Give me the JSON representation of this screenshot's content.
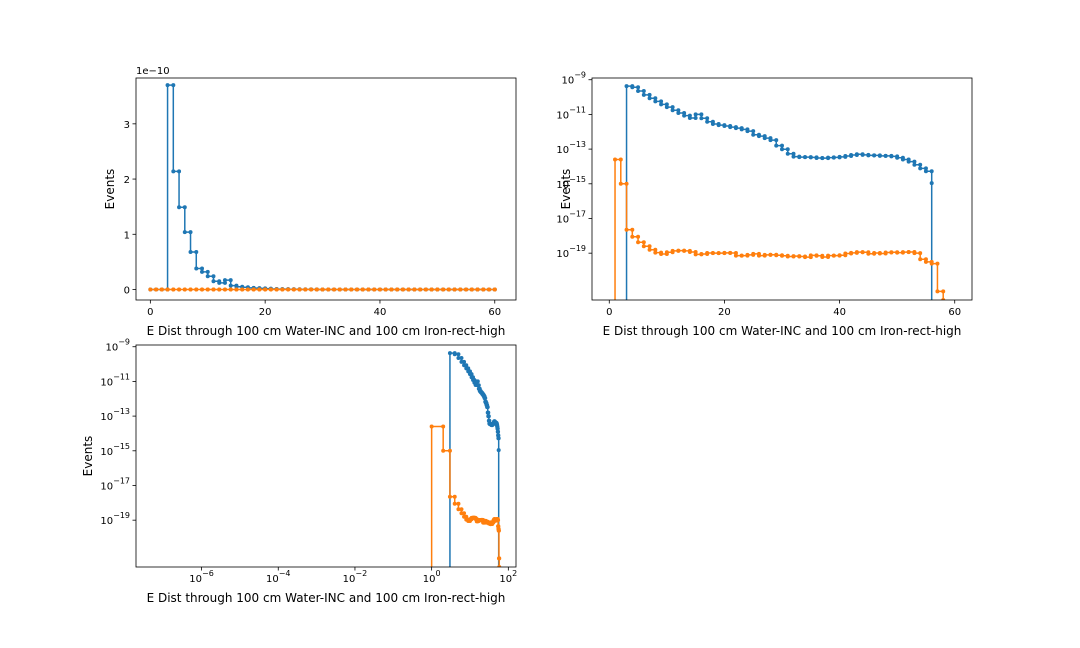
{
  "colors": {
    "series1": "#1f77b4",
    "series2": "#ff7f0e"
  },
  "chart_data": [
    {
      "type": "line",
      "step": true,
      "xlabel": "E Dist through 100 cm Water-INC and 100 cm Iron-rect-high",
      "ylabel": "Events",
      "offset_label": "1e−10",
      "xscale": "linear",
      "yscale": "linear",
      "xlim": [
        -2.5,
        63.7
      ],
      "ylim": [
        -0.19,
        3.83
      ],
      "xticks": [
        0,
        20,
        40,
        60
      ],
      "xtick_labels": [
        "0",
        "20",
        "40",
        "60"
      ],
      "yticks": [
        0,
        1,
        2,
        3
      ],
      "ytick_labels": [
        "0",
        "1",
        "2",
        "3"
      ],
      "series": [
        {
          "x": [
            0,
            1,
            2,
            3,
            4,
            5,
            6,
            7,
            8,
            9,
            10,
            11,
            12,
            13,
            14,
            15,
            16,
            17,
            18,
            19,
            20,
            21,
            22,
            23,
            24,
            25,
            26,
            27,
            28,
            29,
            30,
            31,
            32,
            33,
            34,
            35,
            36,
            37,
            38,
            39,
            40,
            41,
            42,
            43,
            44,
            45,
            46,
            47,
            48,
            49,
            50,
            51,
            52,
            53,
            54,
            55,
            56,
            57,
            58,
            59,
            60
          ],
          "y": [
            0,
            0,
            0,
            3.7,
            2.14,
            1.49,
            1.04,
            0.68,
            0.38,
            0.32,
            0.24,
            0.15,
            0.12,
            0.17,
            0.07,
            0.05,
            0.04,
            0.03,
            0.025,
            0.02,
            0.015,
            0.01,
            0.008,
            0.006,
            0.005,
            0.004,
            0.003,
            0.002,
            0.002,
            0.001,
            0.001,
            0.001,
            0.001,
            0.001,
            0.001,
            0.001,
            0.001,
            0.001,
            0.001,
            0.001,
            0.001,
            0.001,
            0.001,
            0.001,
            0.001,
            0.001,
            0.001,
            0.001,
            0.001,
            0.001,
            0.001,
            0.001,
            0.001,
            0.001,
            0.001,
            0.001,
            0,
            0,
            0,
            0,
            0
          ]
        },
        {
          "x": [
            0,
            1,
            2,
            3,
            4,
            5,
            6,
            7,
            8,
            9,
            10,
            11,
            12,
            13,
            14,
            15,
            16,
            17,
            18,
            19,
            20,
            21,
            22,
            23,
            24,
            25,
            26,
            27,
            28,
            29,
            30,
            31,
            32,
            33,
            34,
            35,
            36,
            37,
            38,
            39,
            40,
            41,
            42,
            43,
            44,
            45,
            46,
            47,
            48,
            49,
            50,
            51,
            52,
            53,
            54,
            55,
            56,
            57,
            58,
            59,
            60
          ],
          "y": [
            0,
            0,
            0,
            0,
            0,
            0,
            0,
            0,
            0,
            0,
            0,
            0,
            0,
            0,
            0,
            0,
            0,
            0,
            0,
            0,
            0,
            0,
            0,
            0,
            0,
            0,
            0,
            0,
            0,
            0,
            0,
            0,
            0,
            0,
            0,
            0,
            0,
            0,
            0,
            0,
            0,
            0,
            0,
            0,
            0,
            0,
            0,
            0,
            0,
            0,
            0,
            0,
            0,
            0,
            0,
            0,
            0,
            0,
            0,
            0,
            0
          ]
        }
      ]
    },
    {
      "type": "line",
      "step": true,
      "xlabel": "E Dist through 100 cm Water-INC and 100 cm Iron-rect-high",
      "ylabel": "Events",
      "xscale": "linear",
      "yscale": "log",
      "xlim": [
        -3.0,
        63.0
      ],
      "ylim": [
        -21.7,
        -8.9
      ],
      "xticks": [
        0,
        20,
        40,
        60
      ],
      "xtick_labels": [
        "0",
        "20",
        "40",
        "60"
      ],
      "yticks": [
        -9,
        -11,
        -13,
        -15,
        -17,
        -19
      ],
      "ytick_labels": [
        "10^-9",
        "10^-11",
        "10^-13",
        "10^-15",
        "10^-17",
        "10^-19"
      ],
      "series": [
        {
          "bottom": -21.7,
          "x": [
            3,
            4,
            5,
            6,
            7,
            8,
            9,
            10,
            11,
            12,
            13,
            14,
            15,
            16,
            17,
            18,
            19,
            20,
            21,
            22,
            23,
            24,
            25,
            26,
            27,
            28,
            29,
            30,
            31,
            32,
            33,
            34,
            35,
            36,
            37,
            38,
            39,
            40,
            41,
            42,
            43,
            44,
            45,
            46,
            47,
            48,
            49,
            50,
            51,
            52,
            53,
            54,
            55,
            56
          ],
          "y": [
            -9.37,
            -9.43,
            -9.65,
            -9.87,
            -10.07,
            -10.25,
            -10.42,
            -10.58,
            -10.76,
            -10.92,
            -11.07,
            -11.21,
            -11.0,
            -11.22,
            -11.42,
            -11.55,
            -11.62,
            -11.67,
            -11.73,
            -11.79,
            -11.86,
            -11.96,
            -12.17,
            -12.25,
            -12.37,
            -12.48,
            -12.8,
            -13.01,
            -13.27,
            -13.43,
            -13.46,
            -13.46,
            -13.48,
            -13.51,
            -13.52,
            -13.49,
            -13.48,
            -13.45,
            -13.4,
            -13.34,
            -13.3,
            -13.33,
            -13.36,
            -13.36,
            -13.39,
            -13.39,
            -13.42,
            -13.5,
            -13.6,
            -13.72,
            -13.9,
            -14.11,
            -14.28,
            -14.96
          ]
        },
        {
          "bottom": -21.7,
          "x": [
            1,
            2,
            3,
            4,
            5,
            6,
            7,
            8,
            9,
            10,
            11,
            12,
            13,
            14,
            15,
            16,
            17,
            18,
            19,
            20,
            21,
            22,
            23,
            24,
            25,
            26,
            27,
            28,
            29,
            30,
            31,
            32,
            33,
            34,
            35,
            36,
            37,
            38,
            39,
            40,
            41,
            42,
            43,
            44,
            45,
            46,
            47,
            48,
            49,
            50,
            51,
            52,
            53,
            54,
            55,
            56,
            57,
            58
          ],
          "y": [
            -13.6,
            -15.0,
            -17.65,
            -18.05,
            -18.37,
            -18.6,
            -18.8,
            -18.97,
            -19.05,
            -18.95,
            -18.87,
            -18.85,
            -18.87,
            -18.93,
            -19.07,
            -19.05,
            -18.99,
            -19.0,
            -19.0,
            -18.98,
            -18.99,
            -19.14,
            -19.14,
            -19.1,
            -19.04,
            -19.14,
            -19.1,
            -19.09,
            -19.12,
            -19.15,
            -19.19,
            -19.17,
            -19.19,
            -19.23,
            -19.13,
            -19.15,
            -19.22,
            -19.14,
            -19.14,
            -19.12,
            -19.02,
            -18.98,
            -18.94,
            -18.95,
            -19.03,
            -18.99,
            -19.02,
            -18.96,
            -18.95,
            -18.97,
            -18.94,
            -18.93,
            -19.0,
            -19.35,
            -19.5,
            -19.6,
            -21.2,
            -21.7
          ]
        }
      ]
    },
    {
      "type": "line",
      "step": true,
      "xlabel": "E Dist through 100 cm Water-INC and 100 cm Iron-rect-high",
      "ylabel": "Events",
      "xscale": "log",
      "yscale": "log",
      "xlim": [
        -7.71,
        2.2
      ],
      "ylim": [
        -21.7,
        -8.9
      ],
      "xticks": [
        -6,
        -4,
        -2,
        0,
        2
      ],
      "xtick_labels": [
        "10^-6",
        "10^-4",
        "10^-2",
        "10^0",
        "10^2"
      ],
      "yticks": [
        -9,
        -11,
        -13,
        -15,
        -17,
        -19
      ],
      "ytick_labels": [
        "10^-9",
        "10^-11",
        "10^-13",
        "10^-15",
        "10^-17",
        "10^-19"
      ],
      "series": [
        {
          "bottom": -21.7,
          "x": [
            3,
            4,
            5,
            6,
            7,
            8,
            9,
            10,
            11,
            12,
            13,
            14,
            15,
            16,
            17,
            18,
            19,
            20,
            21,
            22,
            23,
            24,
            25,
            26,
            27,
            28,
            29,
            30,
            31,
            32,
            33,
            34,
            35,
            36,
            37,
            38,
            39,
            40,
            41,
            42,
            43,
            44,
            45,
            46,
            47,
            48,
            49,
            50,
            51,
            52,
            53,
            54,
            55,
            56
          ],
          "y": [
            -9.37,
            -9.43,
            -9.65,
            -9.87,
            -10.07,
            -10.25,
            -10.42,
            -10.58,
            -10.76,
            -10.92,
            -11.07,
            -11.21,
            -11.0,
            -11.22,
            -11.42,
            -11.55,
            -11.62,
            -11.67,
            -11.73,
            -11.79,
            -11.86,
            -11.96,
            -12.17,
            -12.25,
            -12.37,
            -12.48,
            -12.8,
            -13.01,
            -13.27,
            -13.43,
            -13.46,
            -13.46,
            -13.48,
            -13.51,
            -13.52,
            -13.49,
            -13.48,
            -13.45,
            -13.4,
            -13.34,
            -13.3,
            -13.33,
            -13.36,
            -13.36,
            -13.39,
            -13.39,
            -13.42,
            -13.5,
            -13.6,
            -13.72,
            -13.9,
            -14.11,
            -14.28,
            -14.96
          ]
        },
        {
          "bottom": -21.7,
          "x": [
            1,
            2,
            3,
            4,
            5,
            6,
            7,
            8,
            9,
            10,
            11,
            12,
            13,
            14,
            15,
            16,
            17,
            18,
            19,
            20,
            21,
            22,
            23,
            24,
            25,
            26,
            27,
            28,
            29,
            30,
            31,
            32,
            33,
            34,
            35,
            36,
            37,
            38,
            39,
            40,
            41,
            42,
            43,
            44,
            45,
            46,
            47,
            48,
            49,
            50,
            51,
            52,
            53,
            54,
            55,
            56,
            57,
            58
          ],
          "y": [
            -13.6,
            -15.0,
            -17.65,
            -18.05,
            -18.37,
            -18.6,
            -18.8,
            -18.97,
            -19.05,
            -18.95,
            -18.87,
            -18.85,
            -18.87,
            -18.93,
            -19.07,
            -19.05,
            -18.99,
            -19.0,
            -19.0,
            -18.98,
            -18.99,
            -19.14,
            -19.14,
            -19.1,
            -19.04,
            -19.14,
            -19.1,
            -19.09,
            -19.12,
            -19.15,
            -19.19,
            -19.17,
            -19.19,
            -19.23,
            -19.13,
            -19.15,
            -19.22,
            -19.14,
            -19.14,
            -19.12,
            -19.02,
            -18.98,
            -18.94,
            -18.95,
            -19.03,
            -18.99,
            -19.02,
            -18.96,
            -18.95,
            -18.97,
            -18.94,
            -18.93,
            -19.0,
            -19.35,
            -19.5,
            -19.6,
            -21.2,
            -21.7
          ]
        }
      ]
    }
  ]
}
